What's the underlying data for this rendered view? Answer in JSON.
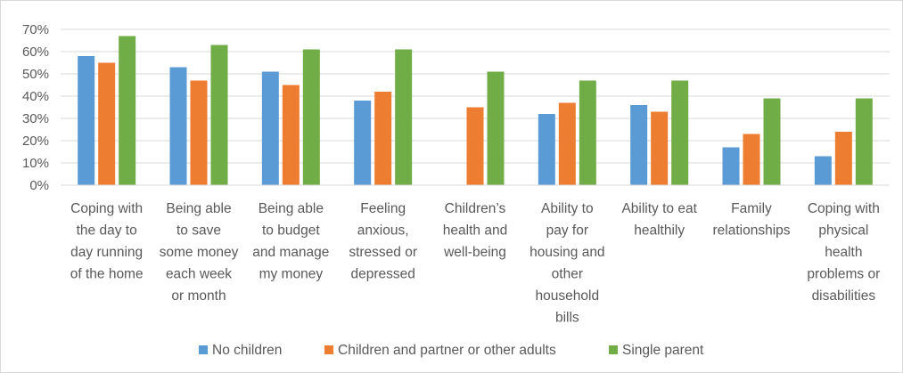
{
  "chart_data": {
    "type": "bar",
    "title": "",
    "xlabel": "",
    "ylabel": "",
    "ylim": [
      0,
      70
    ],
    "yticks": [
      "0%",
      "10%",
      "20%",
      "30%",
      "40%",
      "50%",
      "60%",
      "70%"
    ],
    "grid": true,
    "legend_position": "bottom",
    "categories": [
      [
        "Coping with",
        "the day to",
        "day running",
        "of the home"
      ],
      [
        "Being able",
        "to save",
        "some money",
        "each week",
        "or month"
      ],
      [
        "Being able",
        "to budget",
        "and manage",
        "my money"
      ],
      [
        "Feeling",
        "anxious,",
        "stressed or",
        "depressed"
      ],
      [
        "Children’s",
        "health and",
        "well-being"
      ],
      [
        "Ability to",
        "pay for",
        "housing and",
        "other",
        "household",
        "bills"
      ],
      [
        "Ability to eat",
        "healthily"
      ],
      [
        "Family",
        "relationships"
      ],
      [
        "Coping with",
        "physical",
        "health",
        "problems or",
        "disabilities"
      ]
    ],
    "series": [
      {
        "name": "No children",
        "color": "#5b9bd5",
        "values": [
          58,
          53,
          51,
          38,
          null,
          32,
          36,
          17,
          13
        ]
      },
      {
        "name": "Children and partner or other adults",
        "color": "#ed7d31",
        "values": [
          55,
          47,
          45,
          42,
          35,
          37,
          33,
          23,
          24
        ]
      },
      {
        "name": "Single parent",
        "color": "#70ad47",
        "values": [
          67,
          63,
          61,
          61,
          51,
          47,
          47,
          39,
          39
        ]
      }
    ]
  }
}
